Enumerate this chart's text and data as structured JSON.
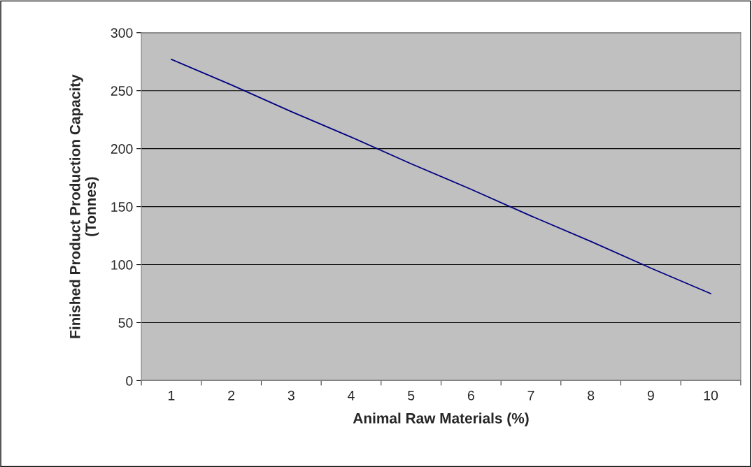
{
  "chart_data": {
    "type": "line",
    "xlabel": "Animal Raw Materials (%)",
    "ylabel": "Finished Product Production Capacity\n(Tonnes)",
    "categories": [
      "1",
      "2",
      "3",
      "4",
      "5",
      "6",
      "7",
      "8",
      "9",
      "10"
    ],
    "series": [
      {
        "color": "#000080",
        "values": [
          277,
          255,
          232,
          210,
          187,
          165,
          142,
          120,
          97,
          75
        ]
      }
    ],
    "ylim": [
      0,
      300
    ],
    "yticks": [
      0,
      50,
      100,
      150,
      200,
      250,
      300
    ],
    "grid": "y",
    "marker": "none",
    "line_style": "solid"
  }
}
